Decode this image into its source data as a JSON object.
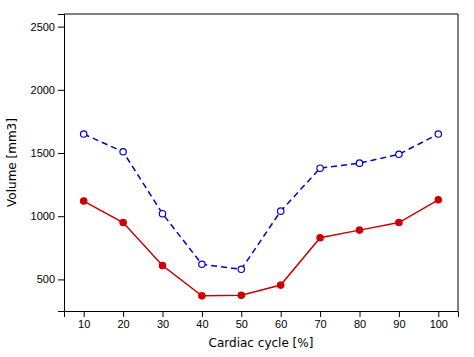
{
  "chart_data": {
    "type": "line",
    "xlabel": "Cardiac cycle [%]",
    "ylabel": "Volume [mm3]",
    "x": [
      10,
      20,
      30,
      40,
      50,
      60,
      70,
      80,
      90,
      100
    ],
    "xlim": [
      5,
      105
    ],
    "ylim": [
      250,
      2600
    ],
    "xticks": [
      10,
      20,
      30,
      40,
      50,
      60,
      70,
      80,
      90,
      100
    ],
    "yticks": [
      500,
      1000,
      1500,
      2000,
      2500
    ],
    "grid": false,
    "series": [
      {
        "color": "#cc0000",
        "line_style": "solid",
        "marker": "circle",
        "values": [
          1120,
          950,
          610,
          370,
          375,
          455,
          830,
          890,
          950,
          1130
        ]
      },
      {
        "color": "#0000cc",
        "line_style": "dashed",
        "marker": "open-circle",
        "values": [
          1650,
          1510,
          1020,
          620,
          580,
          1040,
          1380,
          1420,
          1490,
          1650
        ]
      }
    ]
  }
}
